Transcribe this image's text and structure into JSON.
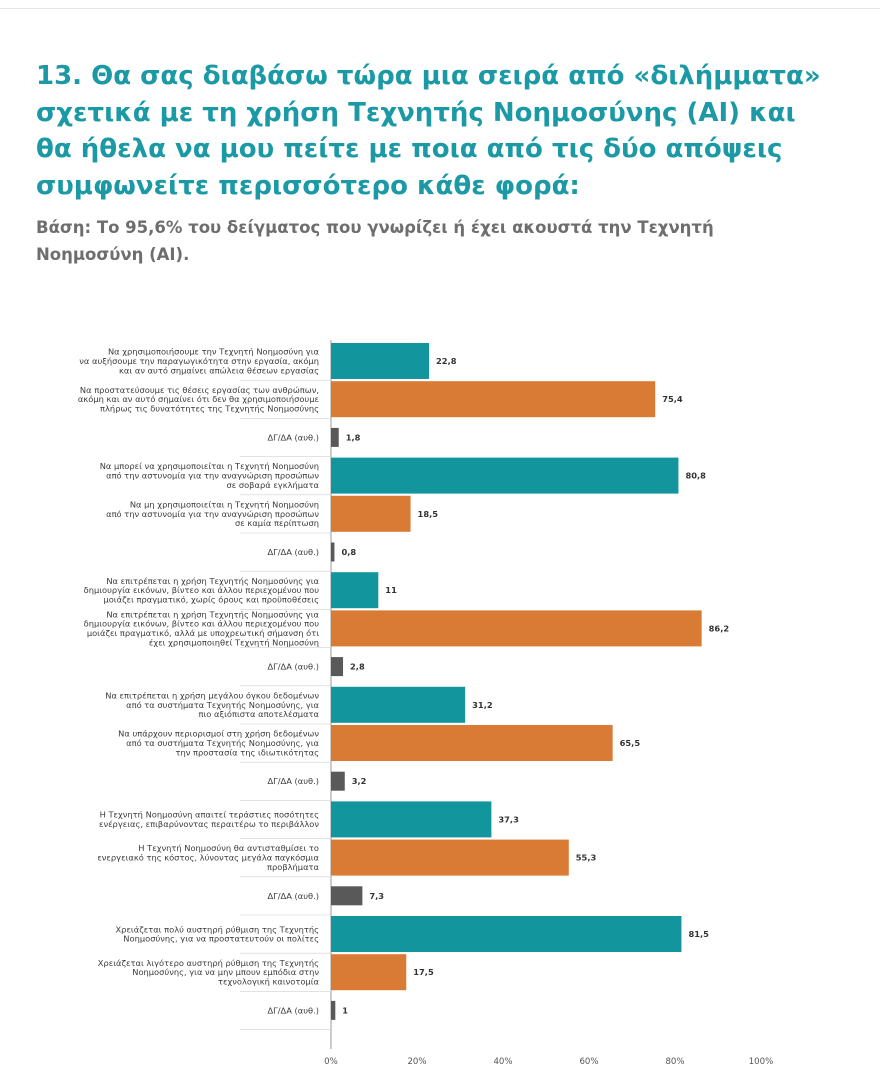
{
  "header": {
    "title": "13. Θα σας διαβάσω τώρα μια σειρά από «διλήμματα» σχετικά με τη χρήση Τεχνητής Νοημοσύνης (AI) και θα ήθελα να μου πείτε με ποια από τις δύο απόψεις συμφωνείτε περισσότερο κάθε φορά:",
    "subtitle": "Βάση: Το 95,6% του δείγματος που γνωρίζει ή έχει ακουστά την Τεχνητή Νοημοσύνη (AI)."
  },
  "colors": {
    "title": "#1b9aa6",
    "teal": "#13959e",
    "orange": "#d97a35",
    "gray": "#595959"
  },
  "chart_data": {
    "type": "bar",
    "orientation": "horizontal",
    "xlim": [
      0,
      100
    ],
    "ticks": [
      "0%",
      "20%",
      "40%",
      "60%",
      "80%",
      "100%"
    ],
    "grid": false,
    "legend": "none",
    "groups": [
      {
        "bars": [
          {
            "label": [
              "Να χρησιμοποιήσουμε την Τεχνητή Νοημοσύνη για",
              "να αυξήσουμε την παραγωγικότητα στην εργασία, ακόμη",
              "και αν αυτό σημαίνει απώλεια θέσεων εργασίας"
            ],
            "value": 22.8,
            "value_label": "22,8",
            "color": "teal"
          },
          {
            "label": [
              "Να προστατεύσουμε τις θέσεις εργασίας των ανθρώπων,",
              "ακόμη και αν αυτό σημαίνει ότι δεν θα χρησιμοποιήσουμε",
              "πλήρως τις δυνατότητες της Τεχνητής Νοημοσύνης"
            ],
            "value": 75.4,
            "value_label": "75,4",
            "color": "orange"
          },
          {
            "label": [
              "ΔΓ/ΔΑ (αυθ.)"
            ],
            "value": 1.8,
            "value_label": "1,8",
            "color": "gray"
          }
        ]
      },
      {
        "bars": [
          {
            "label": [
              "Να μπορεί να χρησιμοποιείται η Τεχνητή Νοημοσύνη",
              "από την αστυνομία για την αναγνώριση προσώπων",
              "σε σοβαρά εγκλήματα"
            ],
            "value": 80.8,
            "value_label": "80,8",
            "color": "teal"
          },
          {
            "label": [
              "Να μη χρησιμοποιείται η Τεχνητή Νοημοσύνη",
              "από την αστυνομία για την αναγνώριση προσώπων",
              "σε καμία περίπτωση"
            ],
            "value": 18.5,
            "value_label": "18,5",
            "color": "orange"
          },
          {
            "label": [
              "ΔΓ/ΔΑ (αυθ.)"
            ],
            "value": 0.8,
            "value_label": "0,8",
            "color": "gray"
          }
        ]
      },
      {
        "bars": [
          {
            "label": [
              "Να επιτρέπεται η χρήση Τεχνητής Νοημοσύνης για",
              "δημιουργία εικόνων, βίντεο και άλλου περιεχομένου που",
              "μοιάζει πραγματικό, χωρίς όρους και προϋποθέσεις"
            ],
            "value": 11,
            "value_label": "11",
            "color": "teal"
          },
          {
            "label": [
              "Να επιτρέπεται η χρήση Τεχνητής Νοημοσύνης για",
              "δημιουργία εικόνων, βίντεο και άλλου περιεχομένου που",
              "μοιάζει πραγματικό, αλλά με υποχρεωτική σήμανση ότι",
              "έχει χρησιμοποιηθεί Τεχνητή Νοημοσύνη"
            ],
            "value": 86.2,
            "value_label": "86,2",
            "color": "orange"
          },
          {
            "label": [
              "ΔΓ/ΔΑ (αυθ.)"
            ],
            "value": 2.8,
            "value_label": "2,8",
            "color": "gray"
          }
        ]
      },
      {
        "bars": [
          {
            "label": [
              "Να επιτρέπεται η χρήση μεγάλου όγκου δεδομένων",
              "από τα συστήματα Τεχνητής Νοημοσύνης, για",
              "πιο αξιόπιστα αποτελέσματα"
            ],
            "value": 31.2,
            "value_label": "31,2",
            "color": "teal"
          },
          {
            "label": [
              "Να υπάρχουν περιορισμοί στη χρήση δεδομένων",
              "από τα συστήματα Τεχνητής Νοημοσύνης, για",
              "την προστασία της ιδιωτικότητας"
            ],
            "value": 65.5,
            "value_label": "65,5",
            "color": "orange"
          },
          {
            "label": [
              "ΔΓ/ΔΑ (αυθ.)"
            ],
            "value": 3.2,
            "value_label": "3,2",
            "color": "gray"
          }
        ]
      },
      {
        "bars": [
          {
            "label": [
              "Η Τεχνητή Νοημοσύνη απαιτεί τεράστιες ποσότητες",
              "ενέργειας, επιβαρύνοντας περαιτέρω το περιβάλλον"
            ],
            "value": 37.3,
            "value_label": "37,3",
            "color": "teal"
          },
          {
            "label": [
              "Η Τεχνητή Νοημοσύνη θα αντισταθμίσει το",
              "ενεργειακό της κόστος, λύνοντας μεγάλα παγκόσμια",
              "προβλήματα"
            ],
            "value": 55.3,
            "value_label": "55,3",
            "color": "orange"
          },
          {
            "label": [
              "ΔΓ/ΔΑ (αυθ.)"
            ],
            "value": 7.3,
            "value_label": "7,3",
            "color": "gray"
          }
        ]
      },
      {
        "bars": [
          {
            "label": [
              "Χρειάζεται πολύ αυστηρή ρύθμιση της Τεχνητής",
              "Νοημοσύνης, για να προστατευτούν οι πολίτες"
            ],
            "value": 81.5,
            "value_label": "81,5",
            "color": "teal"
          },
          {
            "label": [
              "Χρειάζεται λιγότερο αυστηρή ρύθμιση της Τεχνητής",
              "Νοημοσύνης, για να μην μπουν εμπόδια στην",
              "τεχνολογική καινοτομία"
            ],
            "value": 17.5,
            "value_label": "17,5",
            "color": "orange"
          },
          {
            "label": [
              "ΔΓ/ΔΑ (αυθ.)"
            ],
            "value": 1,
            "value_label": "1",
            "color": "gray"
          }
        ]
      }
    ]
  }
}
